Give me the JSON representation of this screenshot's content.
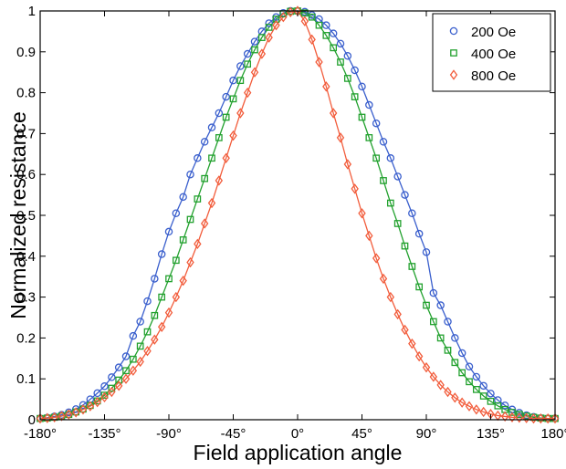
{
  "chart_data": {
    "type": "scatter",
    "title": "",
    "xlabel": "Field application angle",
    "ylabel": "Normalized resistance",
    "xlim": [
      -180,
      180
    ],
    "ylim": [
      0,
      1
    ],
    "x_ticks": [
      -180,
      -135,
      -90,
      -45,
      0,
      45,
      90,
      135,
      180
    ],
    "x_tick_labels": [
      "-180°",
      "-135°",
      "-90°",
      "-45°",
      "0°",
      "45°",
      "90°",
      "135°",
      "180°"
    ],
    "y_ticks": [
      0,
      0.1,
      0.2,
      0.3,
      0.4,
      0.5,
      0.6,
      0.7,
      0.8,
      0.9,
      1
    ],
    "y_tick_labels": [
      "0",
      "0.1",
      "0.2",
      "0.3",
      "0.4",
      "0.5",
      "0.6",
      "0.7",
      "0.8",
      "0.9",
      "1"
    ],
    "grid": false,
    "legend_position": "top-right",
    "series": [
      {
        "name": "200 Oe",
        "marker": "circle",
        "color": "#3a5fcd",
        "points": [
          [
            -180,
            0.003
          ],
          [
            -175,
            0.005
          ],
          [
            -170,
            0.008
          ],
          [
            -165,
            0.012
          ],
          [
            -160,
            0.018
          ],
          [
            -155,
            0.026
          ],
          [
            -150,
            0.036
          ],
          [
            -145,
            0.05
          ],
          [
            -140,
            0.065
          ],
          [
            -135,
            0.082
          ],
          [
            -130,
            0.104
          ],
          [
            -125,
            0.128
          ],
          [
            -120,
            0.155
          ],
          [
            -115,
            0.205
          ],
          [
            -110,
            0.24
          ],
          [
            -105,
            0.29
          ],
          [
            -100,
            0.345
          ],
          [
            -95,
            0.405
          ],
          [
            -90,
            0.46
          ],
          [
            -85,
            0.505
          ],
          [
            -80,
            0.545
          ],
          [
            -75,
            0.6
          ],
          [
            -70,
            0.64
          ],
          [
            -65,
            0.68
          ],
          [
            -60,
            0.715
          ],
          [
            -55,
            0.75
          ],
          [
            -50,
            0.79
          ],
          [
            -45,
            0.83
          ],
          [
            -40,
            0.865
          ],
          [
            -35,
            0.895
          ],
          [
            -30,
            0.925
          ],
          [
            -25,
            0.95
          ],
          [
            -20,
            0.97
          ],
          [
            -15,
            0.985
          ],
          [
            -10,
            0.995
          ],
          [
            -5,
            1.0
          ],
          [
            0,
            1.0
          ],
          [
            5,
            0.998
          ],
          [
            10,
            0.99
          ],
          [
            15,
            0.98
          ],
          [
            20,
            0.965
          ],
          [
            25,
            0.945
          ],
          [
            30,
            0.92
          ],
          [
            35,
            0.89
          ],
          [
            40,
            0.855
          ],
          [
            45,
            0.815
          ],
          [
            50,
            0.77
          ],
          [
            55,
            0.725
          ],
          [
            60,
            0.68
          ],
          [
            65,
            0.64
          ],
          [
            70,
            0.595
          ],
          [
            75,
            0.55
          ],
          [
            80,
            0.505
          ],
          [
            85,
            0.455
          ],
          [
            90,
            0.41
          ],
          [
            95,
            0.31
          ],
          [
            100,
            0.28
          ],
          [
            105,
            0.24
          ],
          [
            110,
            0.2
          ],
          [
            115,
            0.163
          ],
          [
            120,
            0.13
          ],
          [
            125,
            0.105
          ],
          [
            130,
            0.083
          ],
          [
            135,
            0.064
          ],
          [
            140,
            0.048
          ],
          [
            145,
            0.035
          ],
          [
            150,
            0.025
          ],
          [
            155,
            0.017
          ],
          [
            160,
            0.011
          ],
          [
            165,
            0.007
          ],
          [
            170,
            0.004
          ],
          [
            175,
            0.003
          ],
          [
            180,
            0.003
          ]
        ]
      },
      {
        "name": "400 Oe",
        "marker": "square",
        "color": "#22a12e",
        "points": [
          [
            -180,
            0.003
          ],
          [
            -175,
            0.004
          ],
          [
            -170,
            0.006
          ],
          [
            -165,
            0.009
          ],
          [
            -160,
            0.013
          ],
          [
            -155,
            0.019
          ],
          [
            -150,
            0.026
          ],
          [
            -145,
            0.035
          ],
          [
            -140,
            0.046
          ],
          [
            -135,
            0.06
          ],
          [
            -130,
            0.077
          ],
          [
            -125,
            0.097
          ],
          [
            -120,
            0.12
          ],
          [
            -115,
            0.148
          ],
          [
            -110,
            0.18
          ],
          [
            -105,
            0.215
          ],
          [
            -100,
            0.255
          ],
          [
            -95,
            0.3
          ],
          [
            -90,
            0.345
          ],
          [
            -85,
            0.39
          ],
          [
            -80,
            0.44
          ],
          [
            -75,
            0.49
          ],
          [
            -70,
            0.54
          ],
          [
            -65,
            0.59
          ],
          [
            -60,
            0.64
          ],
          [
            -55,
            0.69
          ],
          [
            -50,
            0.74
          ],
          [
            -45,
            0.785
          ],
          [
            -40,
            0.83
          ],
          [
            -35,
            0.87
          ],
          [
            -30,
            0.905
          ],
          [
            -25,
            0.935
          ],
          [
            -20,
            0.96
          ],
          [
            -15,
            0.98
          ],
          [
            -10,
            0.993
          ],
          [
            -5,
            0.999
          ],
          [
            0,
            1.0
          ],
          [
            5,
            0.995
          ],
          [
            10,
            0.985
          ],
          [
            15,
            0.965
          ],
          [
            20,
            0.94
          ],
          [
            25,
            0.91
          ],
          [
            30,
            0.875
          ],
          [
            35,
            0.835
          ],
          [
            40,
            0.79
          ],
          [
            45,
            0.74
          ],
          [
            50,
            0.69
          ],
          [
            55,
            0.64
          ],
          [
            60,
            0.585
          ],
          [
            65,
            0.53
          ],
          [
            70,
            0.48
          ],
          [
            75,
            0.425
          ],
          [
            80,
            0.375
          ],
          [
            85,
            0.325
          ],
          [
            90,
            0.28
          ],
          [
            95,
            0.24
          ],
          [
            100,
            0.2
          ],
          [
            105,
            0.17
          ],
          [
            110,
            0.14
          ],
          [
            115,
            0.115
          ],
          [
            120,
            0.093
          ],
          [
            125,
            0.074
          ],
          [
            130,
            0.058
          ],
          [
            135,
            0.045
          ],
          [
            140,
            0.034
          ],
          [
            145,
            0.025
          ],
          [
            150,
            0.018
          ],
          [
            155,
            0.013
          ],
          [
            160,
            0.009
          ],
          [
            165,
            0.006
          ],
          [
            170,
            0.004
          ],
          [
            175,
            0.003
          ],
          [
            180,
            0.003
          ]
        ]
      },
      {
        "name": "800 Oe",
        "marker": "diamond",
        "color": "#f25c3b",
        "points": [
          [
            -180,
            0.003
          ],
          [
            -175,
            0.004
          ],
          [
            -170,
            0.006
          ],
          [
            -165,
            0.009
          ],
          [
            -160,
            0.013
          ],
          [
            -155,
            0.018
          ],
          [
            -150,
            0.025
          ],
          [
            -145,
            0.033
          ],
          [
            -140,
            0.043
          ],
          [
            -135,
            0.055
          ],
          [
            -130,
            0.068
          ],
          [
            -125,
            0.083
          ],
          [
            -120,
            0.1
          ],
          [
            -115,
            0.12
          ],
          [
            -110,
            0.142
          ],
          [
            -105,
            0.168
          ],
          [
            -100,
            0.196
          ],
          [
            -95,
            0.227
          ],
          [
            -90,
            0.262
          ],
          [
            -85,
            0.3
          ],
          [
            -80,
            0.34
          ],
          [
            -75,
            0.385
          ],
          [
            -70,
            0.43
          ],
          [
            -65,
            0.48
          ],
          [
            -60,
            0.53
          ],
          [
            -55,
            0.585
          ],
          [
            -50,
            0.64
          ],
          [
            -45,
            0.695
          ],
          [
            -40,
            0.75
          ],
          [
            -35,
            0.8
          ],
          [
            -30,
            0.85
          ],
          [
            -25,
            0.895
          ],
          [
            -20,
            0.935
          ],
          [
            -15,
            0.965
          ],
          [
            -10,
            0.985
          ],
          [
            -5,
            0.997
          ],
          [
            0,
            1.0
          ],
          [
            5,
            0.975
          ],
          [
            10,
            0.93
          ],
          [
            15,
            0.875
          ],
          [
            20,
            0.815
          ],
          [
            25,
            0.75
          ],
          [
            30,
            0.69
          ],
          [
            35,
            0.625
          ],
          [
            40,
            0.565
          ],
          [
            45,
            0.505
          ],
          [
            50,
            0.45
          ],
          [
            55,
            0.395
          ],
          [
            60,
            0.345
          ],
          [
            65,
            0.3
          ],
          [
            70,
            0.258
          ],
          [
            75,
            0.22
          ],
          [
            80,
            0.186
          ],
          [
            85,
            0.155
          ],
          [
            90,
            0.128
          ],
          [
            95,
            0.105
          ],
          [
            100,
            0.085
          ],
          [
            105,
            0.068
          ],
          [
            110,
            0.054
          ],
          [
            115,
            0.042
          ],
          [
            120,
            0.033
          ],
          [
            125,
            0.025
          ],
          [
            130,
            0.019
          ],
          [
            135,
            0.014
          ],
          [
            140,
            0.01
          ],
          [
            145,
            0.008
          ],
          [
            150,
            0.006
          ],
          [
            155,
            0.005
          ],
          [
            160,
            0.004
          ],
          [
            165,
            0.003
          ],
          [
            170,
            0.003
          ],
          [
            175,
            0.003
          ],
          [
            180,
            0.003
          ]
        ]
      }
    ]
  }
}
